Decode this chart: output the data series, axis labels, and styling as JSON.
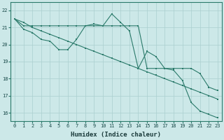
{
  "x": [
    0,
    1,
    2,
    3,
    4,
    5,
    6,
    7,
    8,
    9,
    10,
    11,
    12,
    13,
    14,
    15,
    16,
    17,
    18,
    19,
    20,
    21,
    22,
    23
  ],
  "line1_jagged": [
    21.5,
    20.9,
    20.7,
    20.3,
    20.2,
    19.7,
    19.7,
    20.3,
    21.1,
    21.2,
    21.1,
    21.8,
    21.3,
    20.8,
    18.6,
    19.6,
    19.3,
    18.6,
    18.5,
    17.9,
    16.6,
    16.1,
    15.9,
    15.7
  ],
  "line2_flat": [
    21.5,
    21.1,
    21.1,
    21.1,
    21.1,
    21.1,
    21.1,
    21.1,
    21.1,
    21.1,
    21.1,
    21.1,
    21.1,
    21.1,
    21.1,
    18.6,
    18.6,
    18.6,
    18.6,
    18.6,
    18.6,
    18.3,
    17.5,
    17.3
  ],
  "line3_linear": [
    21.5,
    21.3,
    21.0,
    20.8,
    20.6,
    20.4,
    20.2,
    20.0,
    19.8,
    19.6,
    19.4,
    19.2,
    19.0,
    18.8,
    18.6,
    18.4,
    18.2,
    18.0,
    17.8,
    17.6,
    17.4,
    17.2,
    17.0,
    16.8
  ],
  "xlabel": "Humidex (Indice chaleur)",
  "bg_color": "#cce8e8",
  "line_color": "#2a7a6a",
  "grid_color": "#aacfcf",
  "ylim": [
    15.5,
    22.5
  ],
  "xlim": [
    -0.5,
    23.5
  ],
  "yticks": [
    16,
    17,
    18,
    19,
    20,
    21,
    22
  ],
  "xticks": [
    0,
    1,
    2,
    3,
    4,
    5,
    6,
    7,
    8,
    9,
    10,
    11,
    12,
    13,
    14,
    15,
    16,
    17,
    18,
    19,
    20,
    21,
    22,
    23
  ]
}
